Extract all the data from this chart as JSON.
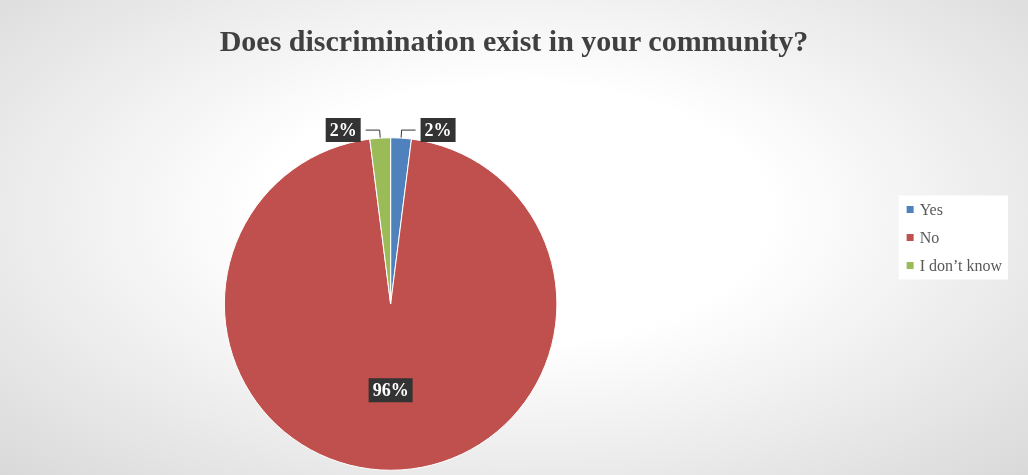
{
  "chart_data": {
    "type": "pie",
    "title": "Does discrimination exist in your community?",
    "categories": [
      "Yes",
      "No",
      "I don’t know"
    ],
    "values": [
      2,
      96,
      2
    ],
    "value_labels": [
      "2%",
      "96%",
      "2%"
    ],
    "colors": [
      "#4f81bd",
      "#c0504d",
      "#9bbb59"
    ],
    "legend": "right"
  }
}
